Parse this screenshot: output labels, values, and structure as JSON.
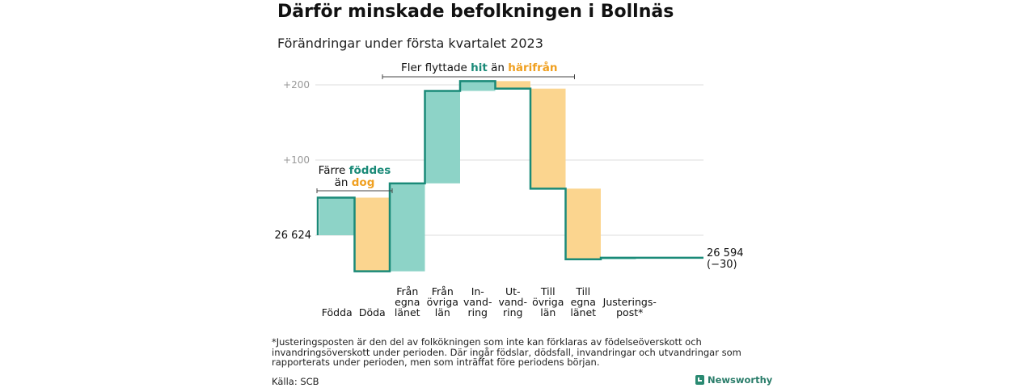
{
  "title": "Därför minskade befolkningen i Bollnäs",
  "subtitle": "Förändringar under första kvartalet 2023",
  "chart_data": {
    "type": "bar",
    "subtype": "waterfall",
    "start_value": 26624,
    "start_label": "26 624",
    "end_value": 26594,
    "end_label": "26 594",
    "end_change_label": "(−30)",
    "y_relative_range": [
      -50,
      215
    ],
    "y_ticks": [
      {
        "value": 200,
        "label": "+200"
      },
      {
        "value": 100,
        "label": "+100"
      }
    ],
    "grid": true,
    "steps": [
      {
        "label": [
          "Födda"
        ],
        "value": 50,
        "kind": "in"
      },
      {
        "label": [
          "Döda"
        ],
        "value": -98,
        "kind": "out"
      },
      {
        "label": [
          "Från",
          "egna",
          "länet"
        ],
        "value": 117,
        "kind": "in"
      },
      {
        "label": [
          "Från",
          "övriga",
          "län"
        ],
        "value": 123,
        "kind": "in"
      },
      {
        "label": [
          "In-",
          "vand-",
          "ring"
        ],
        "value": 13,
        "kind": "in"
      },
      {
        "label": [
          "Ut-",
          "vand-",
          "ring"
        ],
        "value": -10,
        "kind": "out"
      },
      {
        "label": [
          "Till",
          "övriga",
          "län"
        ],
        "value": -133,
        "kind": "out"
      },
      {
        "label": [
          "Till",
          "egna",
          "länet"
        ],
        "value": -94,
        "kind": "out"
      },
      {
        "label": [
          "Justerings-",
          "post*"
        ],
        "value": 2,
        "kind": "in"
      }
    ],
    "colors": {
      "in": "#8dd3c7",
      "out": "#fbd58f",
      "line": "#1a8a78",
      "grid": "#dddddd",
      "accent_in": "#1a8a78",
      "accent_out": "#f0a020"
    },
    "annotations": [
      {
        "parts": [
          {
            "text": "Färre ",
            "style": "plain"
          },
          {
            "text": "föddes",
            "style": "in"
          }
        ],
        "line2": [
          {
            "text": "än ",
            "style": "plain"
          },
          {
            "text": "dog",
            "style": "out"
          }
        ],
        "span": [
          0,
          1
        ]
      },
      {
        "parts": [
          {
            "text": "Fler flyttade ",
            "style": "plain"
          },
          {
            "text": "hit",
            "style": "in"
          },
          {
            "text": " än ",
            "style": "plain"
          },
          {
            "text": "härifrån",
            "style": "out"
          }
        ],
        "span": [
          2,
          6
        ]
      }
    ]
  },
  "footnote": "*Justeringsposten är den del av folkökningen som inte kan förklaras av födelseöverskott och invandringsöverskott under perioden. Där ingår födslar, dödsfall, invandringar och utvandringar som rapporterats under perioden, men som inträffat före periodens början.",
  "source": "Källa: SCB",
  "brand": "Newsworthy"
}
